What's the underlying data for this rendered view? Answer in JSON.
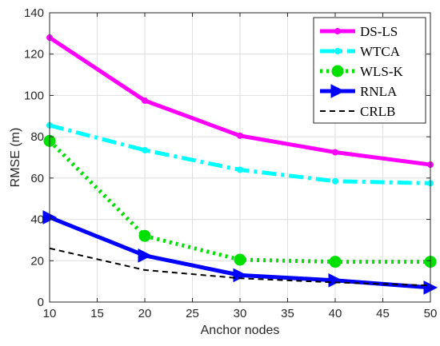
{
  "chart_data": {
    "type": "line",
    "xlabel": "Anchor nodes",
    "ylabel": "RMSE (m)",
    "xlim": [
      10,
      50
    ],
    "ylim": [
      0,
      140
    ],
    "xticks": [
      10,
      15,
      20,
      25,
      30,
      35,
      40,
      45,
      50
    ],
    "yticks": [
      0,
      20,
      40,
      60,
      80,
      100,
      120,
      140
    ],
    "grid": true,
    "legend_position": "top-right",
    "x": [
      10,
      20,
      30,
      40,
      50
    ],
    "series": [
      {
        "name": "DS-LS",
        "values": [
          128,
          97.5,
          80.5,
          72.5,
          66.5
        ],
        "color": "#ff00ff",
        "style": "solid",
        "marker": "dot"
      },
      {
        "name": "WTCA",
        "values": [
          85.5,
          73.5,
          64,
          58.5,
          57.5
        ],
        "color": "#00ffff",
        "style": "dashdot",
        "marker": "dot"
      },
      {
        "name": "WLS-K",
        "values": [
          78,
          32,
          20.5,
          19.5,
          19.5
        ],
        "color": "#00e000",
        "style": "dotted",
        "marker": "circle"
      },
      {
        "name": "RNLA",
        "values": [
          41,
          22.5,
          13,
          10.5,
          7
        ],
        "color": "#0000ff",
        "style": "solid",
        "marker": "triangle-right"
      },
      {
        "name": "CRLB",
        "values": [
          26,
          15.5,
          11.5,
          9.5,
          8
        ],
        "color": "#000000",
        "style": "dashed",
        "marker": "none"
      }
    ]
  }
}
